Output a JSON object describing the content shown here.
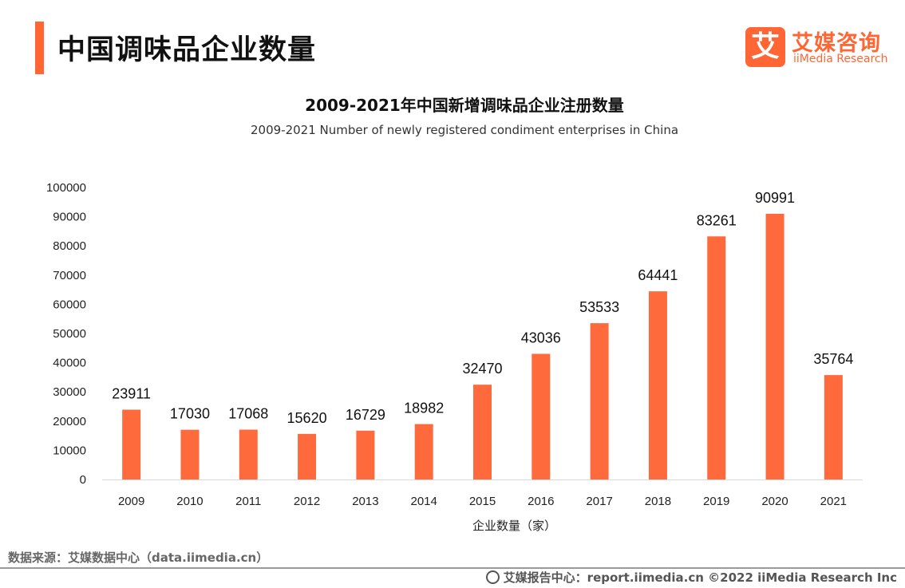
{
  "header": {
    "title": "中国调味品企业数量",
    "logo_cn": "艾媒咨询",
    "logo_en": "iiMedia Research",
    "logo_mark": "艾"
  },
  "chart_data": {
    "type": "bar",
    "title": "2009-2021年中国新增调味品企业注册数量",
    "subtitle": "2009-2021 Number of newly registered condiment enterprises in China",
    "categories": [
      "2009",
      "2010",
      "2011",
      "2012",
      "2013",
      "2014",
      "2015",
      "2016",
      "2017",
      "2018",
      "2019",
      "2020",
      "2021"
    ],
    "values": [
      23911,
      17030,
      17068,
      15620,
      16729,
      18982,
      32470,
      43036,
      53533,
      64441,
      83261,
      90991,
      35764
    ],
    "xlabel": "企业数量（家）",
    "ylabel": "",
    "ylim": [
      0,
      100000
    ],
    "yticks": [
      0,
      10000,
      20000,
      30000,
      40000,
      50000,
      60000,
      70000,
      80000,
      90000,
      100000
    ],
    "grid": false,
    "legend": "none",
    "bar_color": "#ff6a3d"
  },
  "footer": {
    "source": "数据来源：艾媒数据中心（data.iimedia.cn）",
    "site": "艾媒报告中心：report.iimedia.cn  ©2022  iiMedia Research  Inc"
  },
  "colors": {
    "accent": "#ff6633",
    "bar": "#ff6a3d"
  },
  "icons": {
    "footer": "globe-icon"
  }
}
